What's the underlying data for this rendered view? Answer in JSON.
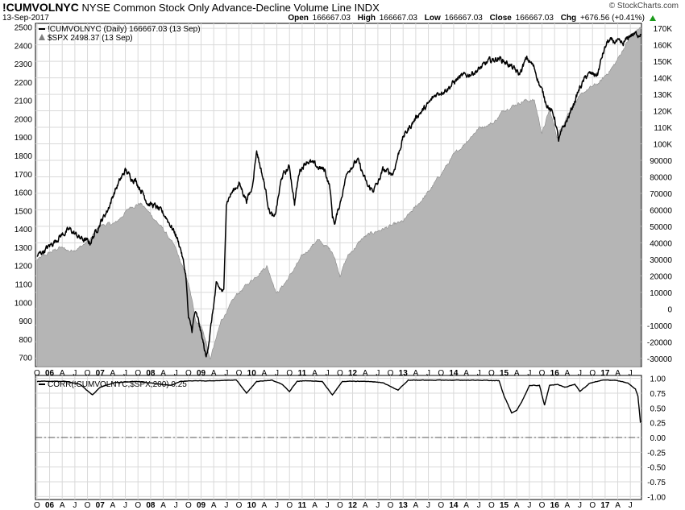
{
  "header": {
    "symbol": "!CUMVOLNYC",
    "description": "NYSE Common Stock Only Advance-Decline Volume Line INDX",
    "date": "13-Sep-2017",
    "brand": "© StockCharts.com",
    "ohlc": {
      "open_label": "Open",
      "open": "166667.03",
      "high_label": "High",
      "high": "166667.03",
      "low_label": "Low",
      "low": "166667.03",
      "close_label": "Close",
      "close": "166667.03",
      "chg_label": "Chg",
      "chg": "+676.56 (+0.41%)"
    }
  },
  "legend": {
    "main": "!CUMVOLNYC (Daily) 166667.03 (13 Sep)",
    "spx": "$SPX 2498.37 (13 Sep)",
    "corr": "CORR(!CUMVOLNYC,$SPX,200) 0.25"
  },
  "colors": {
    "line": "#000000",
    "area": "#b5b5b5",
    "area_edge": "#8a8a8a",
    "grid": "#d9d9d9",
    "zero": "#555555"
  },
  "chart_data": [
    {
      "type": "line",
      "series": [
        {
          "name": "!CUMVOLNYC",
          "x": [
            2005.75,
            2006.0,
            2006.2,
            2006.4,
            2006.6,
            2006.8,
            2007.0,
            2007.15,
            2007.3,
            2007.5,
            2007.6,
            2007.7,
            2007.85,
            2007.95,
            2008.1,
            2008.3,
            2008.5,
            2008.6,
            2008.7,
            2008.75,
            2008.82,
            2008.88,
            2008.95,
            2009.0,
            2009.05,
            2009.1,
            2009.18,
            2009.3,
            2009.45,
            2009.5,
            2009.6,
            2009.75,
            2009.9,
            2010.0,
            2010.1,
            2010.25,
            2010.35,
            2010.45,
            2010.6,
            2010.75,
            2010.85,
            2010.95,
            2011.1,
            2011.3,
            2011.45,
            2011.55,
            2011.6,
            2011.65,
            2011.75,
            2011.9,
            2012.1,
            2012.3,
            2012.4,
            2012.5,
            2012.6,
            2012.8,
            2013.0,
            2013.3,
            2013.45,
            2013.65,
            2013.9,
            2014.1,
            2014.3,
            2014.5,
            2014.7,
            2014.9,
            2015.1,
            2015.3,
            2015.45,
            2015.6,
            2015.7,
            2015.85,
            2016.0,
            2016.08,
            2016.15,
            2016.3,
            2016.5,
            2016.65,
            2016.85,
            2016.95,
            2017.05,
            2017.2,
            2017.35,
            2017.5,
            2017.7
          ],
          "y": [
            32000,
            38000,
            44000,
            48000,
            43000,
            40000,
            52000,
            60000,
            72000,
            84000,
            80000,
            78000,
            70000,
            64000,
            62000,
            56000,
            45000,
            36000,
            20000,
            -6000,
            -13000,
            -2000,
            -8000,
            -15000,
            -22000,
            -30000,
            -14000,
            14000,
            10000,
            65000,
            70000,
            76000,
            66000,
            72000,
            96000,
            76000,
            60000,
            54000,
            80000,
            86000,
            64000,
            84000,
            90000,
            86000,
            84000,
            74000,
            56000,
            52000,
            64000,
            84000,
            90000,
            74000,
            72000,
            76000,
            84000,
            82000,
            104000,
            118000,
            122000,
            130000,
            134000,
            140000,
            142000,
            145000,
            150000,
            152000,
            148000,
            142000,
            152000,
            146000,
            136000,
            124000,
            116000,
            102000,
            108000,
            118000,
            134000,
            142000,
            142000,
            154000,
            162000,
            162000,
            160000,
            166000,
            166667
          ]
        },
        {
          "name": "$SPX",
          "x": [
            2005.75,
            2006.0,
            2006.2,
            2006.4,
            2006.6,
            2006.8,
            2007.0,
            2007.3,
            2007.6,
            2007.8,
            2008.0,
            2008.3,
            2008.5,
            2008.75,
            2008.9,
            2009.0,
            2009.1,
            2009.18,
            2009.4,
            2009.7,
            2010.0,
            2010.3,
            2010.5,
            2010.7,
            2011.0,
            2011.3,
            2011.6,
            2011.75,
            2011.9,
            2012.2,
            2012.4,
            2012.8,
            2013.0,
            2013.5,
            2014.0,
            2014.5,
            2014.8,
            2015.0,
            2015.4,
            2015.6,
            2015.75,
            2015.9,
            2016.05,
            2016.3,
            2016.6,
            2016.9,
            2017.2,
            2017.5,
            2017.7
          ],
          "y": [
            1230,
            1270,
            1300,
            1280,
            1300,
            1340,
            1420,
            1430,
            1520,
            1540,
            1480,
            1380,
            1290,
            1100,
            900,
            880,
            780,
            690,
            900,
            1040,
            1120,
            1200,
            1050,
            1120,
            1250,
            1340,
            1280,
            1150,
            1250,
            1350,
            1380,
            1420,
            1440,
            1600,
            1800,
            1950,
            1980,
            2050,
            2100,
            2100,
            1920,
            2050,
            1900,
            2050,
            2150,
            2200,
            2300,
            2450,
            2498
          ]
        },
        {
          "name": "CORR(!CUMVOLNYC,$SPX,200)",
          "x": [
            2005.75,
            2006.3,
            2006.6,
            2006.85,
            2007.0,
            2007.3,
            2007.7,
            2008.0,
            2008.2,
            2008.4,
            2008.6,
            2008.9,
            2009.2,
            2009.5,
            2009.7,
            2009.9,
            2010.1,
            2010.4,
            2010.6,
            2010.75,
            2010.9,
            2011.1,
            2011.4,
            2011.6,
            2011.8,
            2012.0,
            2012.3,
            2012.6,
            2012.9,
            2013.1,
            2013.5,
            2014.0,
            2014.5,
            2014.9,
            2015.0,
            2015.15,
            2015.25,
            2015.35,
            2015.5,
            2015.7,
            2015.8,
            2015.9,
            2016.05,
            2016.2,
            2016.4,
            2016.5,
            2016.7,
            2016.95,
            2017.2,
            2017.45,
            2017.6,
            2017.65,
            2017.7
          ],
          "y": [
            0.95,
            0.95,
            0.9,
            0.72,
            0.85,
            0.93,
            0.95,
            0.92,
            0.9,
            0.88,
            0.95,
            0.96,
            0.96,
            0.97,
            0.97,
            0.75,
            0.95,
            0.97,
            0.9,
            0.78,
            0.95,
            0.96,
            0.95,
            0.72,
            0.95,
            0.95,
            0.95,
            0.93,
            0.8,
            0.97,
            0.97,
            0.97,
            0.97,
            0.96,
            0.7,
            0.42,
            0.46,
            0.6,
            0.88,
            0.88,
            0.55,
            0.88,
            0.9,
            0.85,
            0.9,
            0.78,
            0.92,
            0.97,
            0.97,
            0.92,
            0.82,
            0.7,
            0.25
          ]
        }
      ],
      "main_axis_ticks": [
        "170K",
        "160K",
        "150K",
        "140K",
        "130K",
        "120K",
        "110K",
        "100K",
        "90000",
        "80000",
        "70000",
        "60000",
        "50000",
        "40000",
        "30000",
        "20000",
        "10000",
        "0",
        "-10000",
        "-20000",
        "-30000"
      ],
      "main_axis_values": [
        170000,
        160000,
        150000,
        140000,
        130000,
        120000,
        110000,
        100000,
        90000,
        80000,
        70000,
        60000,
        50000,
        40000,
        30000,
        20000,
        10000,
        0,
        -10000,
        -20000,
        -30000
      ],
      "spx_axis_ticks": [
        "2500",
        "2400",
        "2300",
        "2200",
        "2100",
        "2000",
        "1900",
        "1800",
        "1700",
        "1600",
        "1500",
        "1400",
        "1300",
        "1200",
        "1100",
        "1000",
        "900",
        "800",
        "700"
      ],
      "spx_axis_values": [
        2500,
        2400,
        2300,
        2200,
        2100,
        2000,
        1900,
        1800,
        1700,
        1600,
        1500,
        1400,
        1300,
        1200,
        1100,
        1000,
        900,
        800,
        700
      ],
      "corr_axis_ticks": [
        "1.00",
        "0.75",
        "0.50",
        "0.25",
        "0.00",
        "-0.25",
        "-0.50",
        "-0.75",
        "-1.00"
      ],
      "corr_axis_values": [
        1.0,
        0.75,
        0.5,
        0.25,
        0.0,
        -0.25,
        -0.5,
        -0.75,
        -1.0
      ],
      "x_ticks": [
        {
          "t": 2005.75,
          "label": "O"
        },
        {
          "t": 2006.0,
          "label": "06",
          "bold": true
        },
        {
          "t": 2006.25,
          "label": "A"
        },
        {
          "t": 2006.5,
          "label": "J"
        },
        {
          "t": 2006.75,
          "label": "O"
        },
        {
          "t": 2007.0,
          "label": "07",
          "bold": true
        },
        {
          "t": 2007.25,
          "label": "A"
        },
        {
          "t": 2007.5,
          "label": "J"
        },
        {
          "t": 2007.75,
          "label": "O"
        },
        {
          "t": 2008.0,
          "label": "08",
          "bold": true
        },
        {
          "t": 2008.25,
          "label": "A"
        },
        {
          "t": 2008.5,
          "label": "J"
        },
        {
          "t": 2008.75,
          "label": "O"
        },
        {
          "t": 2009.0,
          "label": "09",
          "bold": true
        },
        {
          "t": 2009.25,
          "label": "A"
        },
        {
          "t": 2009.5,
          "label": "J"
        },
        {
          "t": 2009.75,
          "label": "O"
        },
        {
          "t": 2010.0,
          "label": "10",
          "bold": true
        },
        {
          "t": 2010.25,
          "label": "A"
        },
        {
          "t": 2010.5,
          "label": "J"
        },
        {
          "t": 2010.75,
          "label": "O"
        },
        {
          "t": 2011.0,
          "label": "11",
          "bold": true
        },
        {
          "t": 2011.25,
          "label": "A"
        },
        {
          "t": 2011.5,
          "label": "J"
        },
        {
          "t": 2011.75,
          "label": "O"
        },
        {
          "t": 2012.0,
          "label": "12",
          "bold": true
        },
        {
          "t": 2012.25,
          "label": "A"
        },
        {
          "t": 2012.5,
          "label": "J"
        },
        {
          "t": 2012.75,
          "label": "O"
        },
        {
          "t": 2013.0,
          "label": "13",
          "bold": true
        },
        {
          "t": 2013.25,
          "label": "A"
        },
        {
          "t": 2013.5,
          "label": "J"
        },
        {
          "t": 2013.75,
          "label": "O"
        },
        {
          "t": 2014.0,
          "label": "14",
          "bold": true
        },
        {
          "t": 2014.25,
          "label": "A"
        },
        {
          "t": 2014.5,
          "label": "J"
        },
        {
          "t": 2014.75,
          "label": "O"
        },
        {
          "t": 2015.0,
          "label": "15",
          "bold": true
        },
        {
          "t": 2015.25,
          "label": "A"
        },
        {
          "t": 2015.5,
          "label": "J"
        },
        {
          "t": 2015.75,
          "label": "O"
        },
        {
          "t": 2016.0,
          "label": "16",
          "bold": true
        },
        {
          "t": 2016.25,
          "label": "A"
        },
        {
          "t": 2016.5,
          "label": "J"
        },
        {
          "t": 2016.75,
          "label": "O"
        },
        {
          "t": 2017.0,
          "label": "17",
          "bold": true
        },
        {
          "t": 2017.25,
          "label": "A"
        },
        {
          "t": 2017.5,
          "label": "J"
        }
      ],
      "x_range": [
        2005.72,
        2017.72
      ],
      "main_ylim": [
        -35000,
        173000
      ],
      "spx_ylim": [
        650,
        2520
      ],
      "corr_ylim": [
        -1.05,
        1.05
      ],
      "grid": true
    }
  ]
}
